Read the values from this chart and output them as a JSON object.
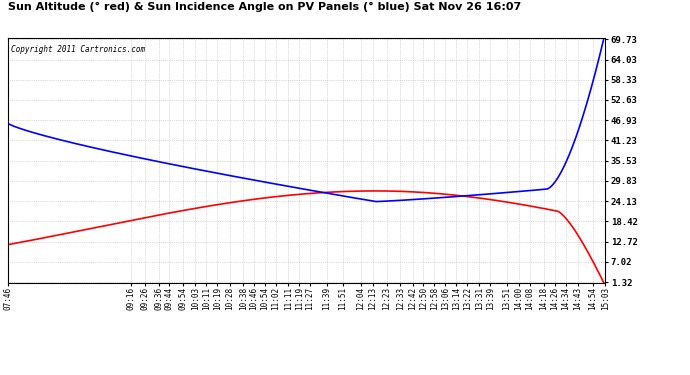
{
  "title": "Sun Altitude (° red) & Sun Incidence Angle on PV Panels (° blue) Sat Nov 26 16:07",
  "copyright": "Copyright 2011 Cartronics.com",
  "yticks": [
    1.32,
    7.02,
    12.72,
    18.42,
    24.13,
    29.83,
    35.53,
    41.23,
    46.93,
    52.63,
    58.33,
    64.03,
    69.73
  ],
  "ymin": 1.32,
  "ymax": 69.73,
  "background_color": "#ffffff",
  "plot_bg_color": "#ffffff",
  "grid_color": "#b0b0b0",
  "red_color": "#ff0000",
  "blue_color": "#0000ff",
  "xtick_labels": [
    "07:46",
    "09:16",
    "09:26",
    "09:36",
    "09:44",
    "09:54",
    "10:03",
    "10:11",
    "10:19",
    "10:28",
    "10:38",
    "10:46",
    "10:54",
    "11:02",
    "11:11",
    "11:19",
    "11:27",
    "11:39",
    "11:51",
    "12:04",
    "12:13",
    "12:23",
    "12:33",
    "12:42",
    "12:50",
    "12:58",
    "13:06",
    "13:14",
    "13:22",
    "13:31",
    "13:39",
    "13:51",
    "14:00",
    "14:08",
    "14:18",
    "14:26",
    "14:34",
    "14:43",
    "14:54",
    "15:03"
  ]
}
